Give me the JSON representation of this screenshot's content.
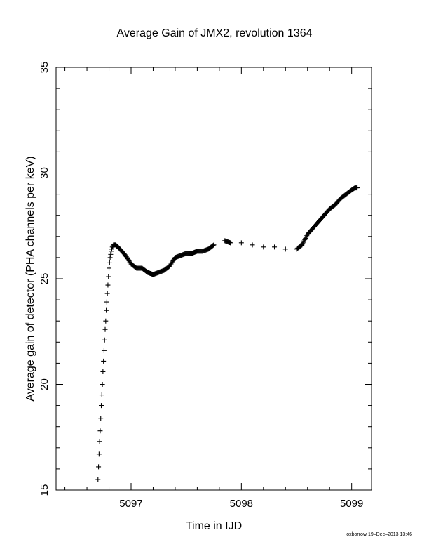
{
  "chart_data": {
    "type": "scatter",
    "title": "Average Gain of JMX2, revolution 1364",
    "xlabel": "Time in IJD",
    "ylabel": "Average gain of detector (PHA channels per keV)",
    "xlim": [
      5096.32,
      5099.18
    ],
    "ylim": [
      15,
      35
    ],
    "xticks": [
      5097,
      5098,
      5099
    ],
    "yticks": [
      15,
      20,
      25,
      30,
      35
    ],
    "marker": "plus",
    "series": [
      {
        "values_x": [
          5096.7,
          5096.705,
          5096.71,
          5096.715,
          5096.72,
          5096.725,
          5096.73,
          5096.735,
          5096.74,
          5096.745,
          5096.75,
          5096.755,
          5096.76,
          5096.765,
          5096.77,
          5096.775,
          5096.78,
          5096.785,
          5096.79,
          5096.795,
          5096.8,
          5096.81,
          5096.82,
          5096.83,
          5096.84,
          5096.85,
          5096.86,
          5096.9,
          5096.95,
          5097.0,
          5097.05,
          5097.1,
          5097.15,
          5097.2,
          5097.25,
          5097.3,
          5097.35,
          5097.4,
          5097.45,
          5097.5,
          5097.55,
          5097.6,
          5097.65,
          5097.7,
          5097.75,
          5097.85,
          5097.9,
          5098.0,
          5098.1,
          5098.2,
          5098.3,
          5098.4,
          5098.5,
          5098.55,
          5098.6,
          5098.65,
          5098.7,
          5098.75,
          5098.8,
          5098.85,
          5098.9,
          5098.95,
          5099.0,
          5099.03,
          5099.05
        ],
        "values_y": [
          15.5,
          16.1,
          16.7,
          17.3,
          17.8,
          18.4,
          19.0,
          19.5,
          20.0,
          20.6,
          21.1,
          21.6,
          22.1,
          22.6,
          23.0,
          23.5,
          23.9,
          24.3,
          24.7,
          25.1,
          25.5,
          26.0,
          26.3,
          26.5,
          26.6,
          26.6,
          26.6,
          26.4,
          26.1,
          25.7,
          25.5,
          25.5,
          25.3,
          25.2,
          25.3,
          25.4,
          25.6,
          26.0,
          26.1,
          26.2,
          26.2,
          26.3,
          26.3,
          26.4,
          26.6,
          26.8,
          26.7,
          26.7,
          26.6,
          26.5,
          26.5,
          26.4,
          26.4,
          26.6,
          27.1,
          27.4,
          27.7,
          28.0,
          28.3,
          28.5,
          28.8,
          29.0,
          29.2,
          29.3,
          29.3
        ]
      }
    ]
  },
  "footer": "oxborrow 19–Dec–2013 13:46"
}
